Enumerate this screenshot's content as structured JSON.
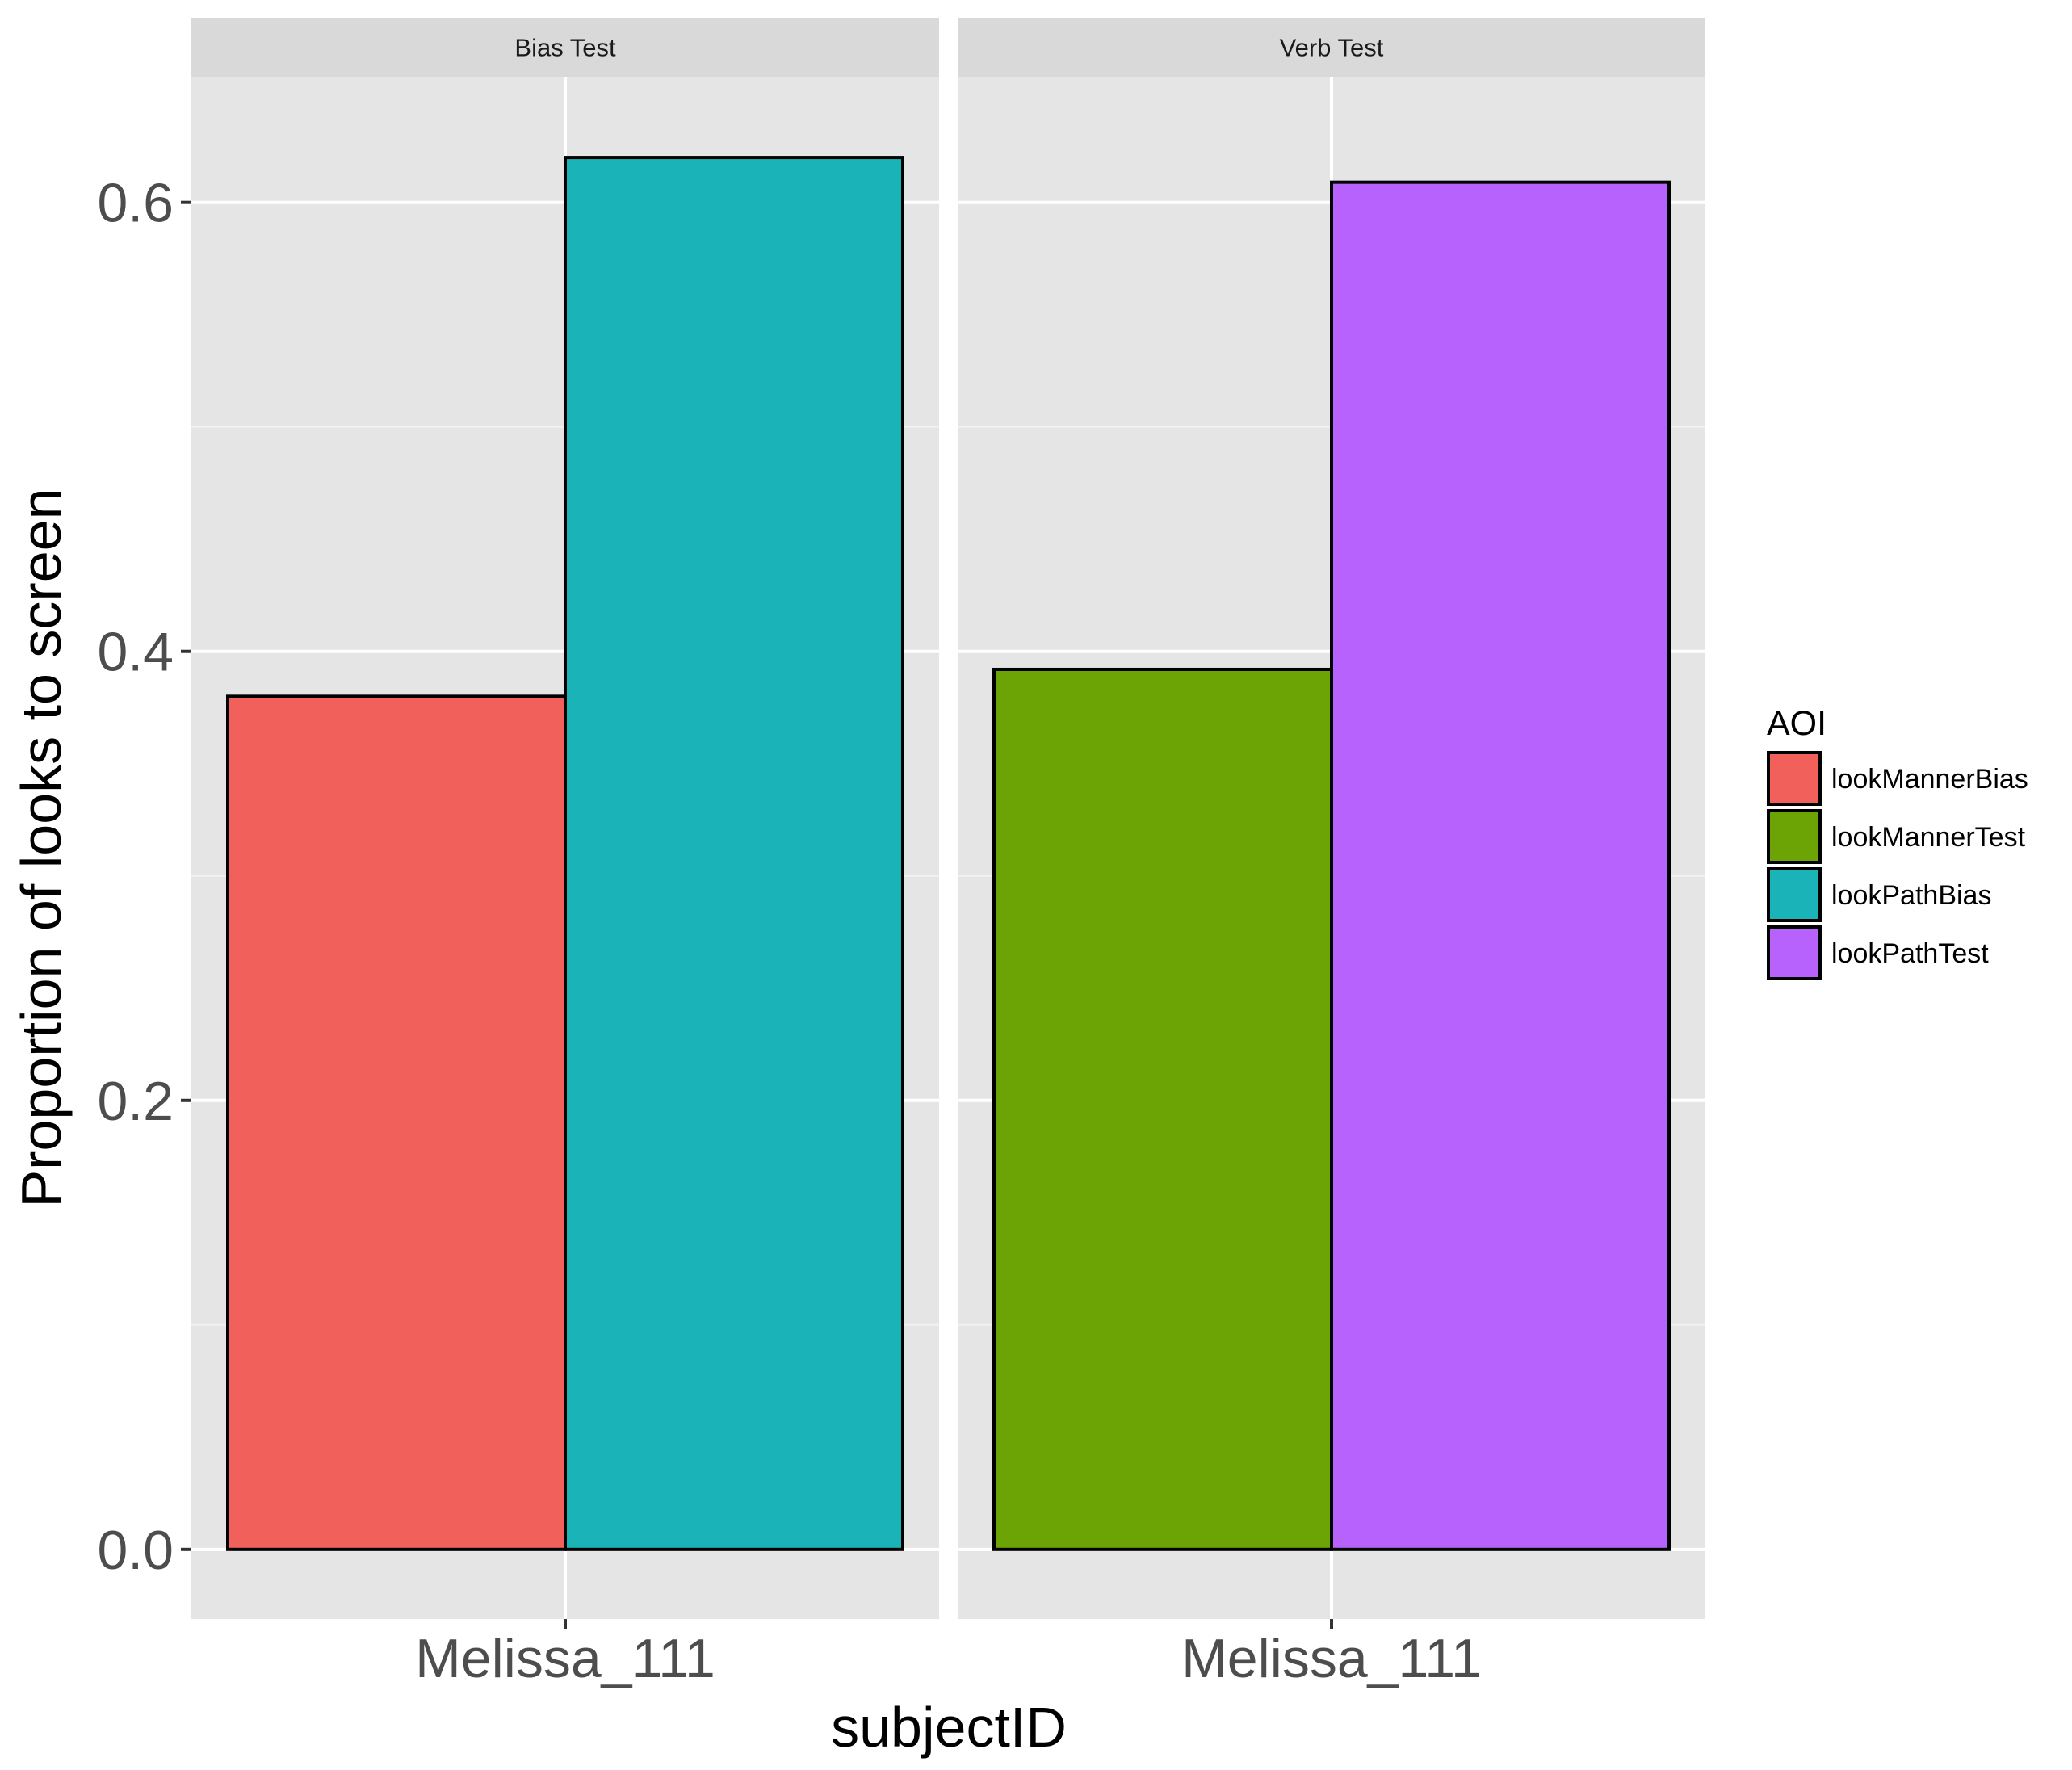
{
  "chart_data": {
    "type": "bar",
    "xlabel": "subjectID",
    "ylabel": "Proportion of looks to screen",
    "ylim": [
      -0.031,
      0.656
    ],
    "y_ticks": [
      "0.0",
      "0.2",
      "0.4",
      "0.6"
    ],
    "grid": true,
    "legend": {
      "title": "AOI",
      "position": "right",
      "entries": [
        {
          "name": "lookMannerBias",
          "color": "#F2605C"
        },
        {
          "name": "lookMannerTest",
          "color": "#6CA405"
        },
        {
          "name": "lookPathBias",
          "color": "#1AB3B7"
        },
        {
          "name": "lookPathTest",
          "color": "#B862FE"
        }
      ]
    },
    "facets": [
      {
        "title": "Bias Test",
        "category": "Melissa_111",
        "series": [
          {
            "name": "lookMannerBias",
            "value": 0.38,
            "color": "#F2605C"
          },
          {
            "name": "lookPathBias",
            "value": 0.62,
            "color": "#1AB3B7"
          }
        ]
      },
      {
        "title": "Verb Test",
        "category": "Melissa_111",
        "series": [
          {
            "name": "lookMannerTest",
            "value": 0.392,
            "color": "#6CA405"
          },
          {
            "name": "lookPathTest",
            "value": 0.609,
            "color": "#B862FE"
          }
        ]
      }
    ]
  }
}
